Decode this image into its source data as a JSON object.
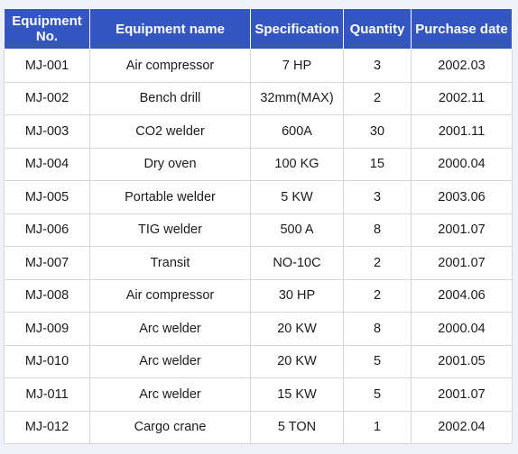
{
  "table": {
    "headers": [
      "Equipment No.",
      "Equipment name",
      "Specification",
      "Quantity",
      "Purchase date"
    ],
    "rows": [
      [
        "MJ-001",
        "Air compressor",
        "7 HP",
        "3",
        "2002.03"
      ],
      [
        "MJ-002",
        "Bench drill",
        "32mm(MAX)",
        "2",
        "2002.11"
      ],
      [
        "MJ-003",
        "CO2 welder",
        "600A",
        "30",
        "2001.11"
      ],
      [
        "MJ-004",
        "Dry oven",
        "100 KG",
        "15",
        "2000.04"
      ],
      [
        "MJ-005",
        "Portable welder",
        "5 KW",
        "3",
        "2003.06"
      ],
      [
        "MJ-006",
        "TIG welder",
        "500 A",
        "8",
        "2001.07"
      ],
      [
        "MJ-007",
        "Transit",
        "NO-10C",
        "2",
        "2001.07"
      ],
      [
        "MJ-008",
        "Air compressor",
        "30 HP",
        "2",
        "2004.06"
      ],
      [
        "MJ-009",
        "Arc welder",
        "20 KW",
        "8",
        "2000.04"
      ],
      [
        "MJ-010",
        "Arc welder",
        "20 KW",
        "5",
        "2001.05"
      ],
      [
        "MJ-011",
        "Arc welder",
        "15 KW",
        "5",
        "2001.07"
      ],
      [
        "MJ-012",
        "Cargo crane",
        "5 TON",
        "1",
        "2002.04"
      ]
    ]
  },
  "colors": {
    "header_background": "#3456c1",
    "header_text": "#ffffff",
    "page_background": "#eef1f8",
    "grid_line": "#d7d7d7"
  }
}
